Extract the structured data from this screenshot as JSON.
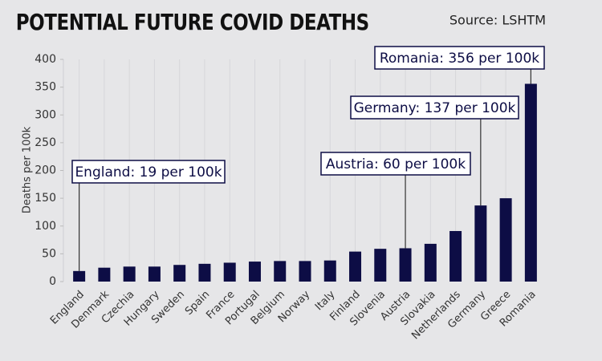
{
  "chart_data": {
    "type": "bar",
    "title": "POTENTIAL FUTURE COVID DEATHS",
    "source": "Source: LSHTM",
    "y_label": "Deaths per 100k",
    "categories": [
      "England",
      "Denmark",
      "Czechia",
      "Hungary",
      "Sweden",
      "Spain",
      "France",
      "Portugal",
      "Belgium",
      "Norway",
      "Italy",
      "Finland",
      "Slovenia",
      "Austria",
      "Slovakia",
      "Netherlands",
      "Germany",
      "Greece",
      "Romania"
    ],
    "values": [
      19,
      25,
      27,
      27,
      30,
      32,
      34,
      36,
      37,
      37,
      38,
      54,
      59,
      60,
      68,
      91,
      137,
      150,
      356
    ],
    "color": "#0d0d45",
    "ylim": [
      0,
      400
    ],
    "yticks": [
      0,
      50,
      100,
      150,
      200,
      250,
      300,
      350,
      400
    ],
    "annotations": [
      {
        "text": "England: 19 per 100k",
        "category": "England"
      },
      {
        "text": "Austria: 60 per 100k",
        "category": "Austria"
      },
      {
        "text": "Germany: 137 per 100k",
        "category": "Germany"
      },
      {
        "text": "Romania: 356 per 100k",
        "category": "Romania"
      }
    ]
  }
}
